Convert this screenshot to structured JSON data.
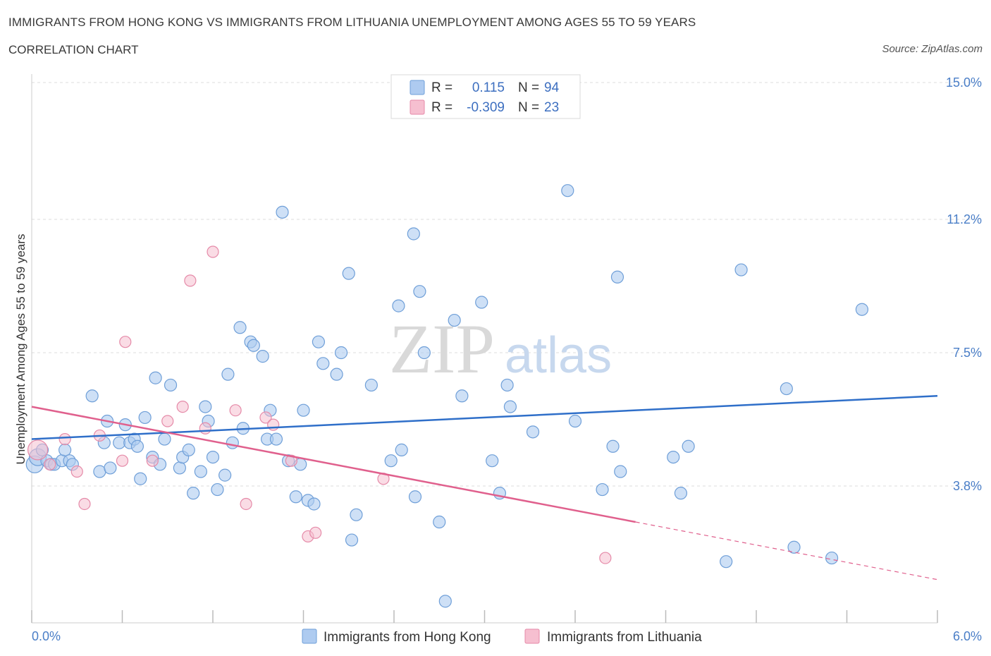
{
  "header": {
    "title": "IMMIGRANTS FROM HONG KONG VS IMMIGRANTS FROM LITHUANIA UNEMPLOYMENT AMONG AGES 55 TO 59 YEARS",
    "subtitle": "CORRELATION CHART",
    "source": "Source: ZipAtlas.com"
  },
  "watermark": {
    "zip": "ZIP",
    "atlas": "atlas"
  },
  "colors": {
    "blue_fill": "#aecbf0",
    "blue_stroke": "#6f9fd8",
    "blue_line": "#2f6fc9",
    "pink_fill": "#f6bfd0",
    "pink_stroke": "#e58aa8",
    "pink_line": "#e0608d",
    "grid": "#dddddd"
  },
  "legend": {
    "rows": [
      {
        "r_label": "R =",
        "r_value": "0.115",
        "n_label": "N =",
        "n_value": "94"
      },
      {
        "r_label": "R =",
        "r_value": "-0.309",
        "n_label": "N =",
        "n_value": "23"
      }
    ]
  },
  "chart_data": {
    "type": "scatter",
    "title": "IMMIGRANTS FROM HONG KONG VS IMMIGRANTS FROM LITHUANIA UNEMPLOYMENT AMONG AGES 55 TO 59 YEARS",
    "xlabel": "",
    "ylabel": "Unemployment Among Ages 55 to 59 years",
    "xlim": [
      0,
      6.0
    ],
    "ylim": [
      0,
      15.0
    ],
    "x_tick_labels": [
      "0.0%",
      "6.0%"
    ],
    "y_ticks": [
      3.8,
      7.5,
      11.2,
      15.0
    ],
    "y_tick_labels": [
      "3.8%",
      "7.5%",
      "11.2%",
      "15.0%"
    ],
    "grid": true,
    "legend_position": "top-center",
    "series": [
      {
        "name": "Immigrants from Hong Kong",
        "R": 0.115,
        "N": 94,
        "trend": {
          "x": [
            0.0,
            6.0
          ],
          "y": [
            5.1,
            6.3
          ]
        },
        "points": [
          [
            0.02,
            4.4
          ],
          [
            0.04,
            4.6
          ],
          [
            0.07,
            4.8
          ],
          [
            0.1,
            4.5
          ],
          [
            0.13,
            4.4
          ],
          [
            0.15,
            4.4
          ],
          [
            0.2,
            4.5
          ],
          [
            0.22,
            4.8
          ],
          [
            0.25,
            4.5
          ],
          [
            0.27,
            4.4
          ],
          [
            0.4,
            6.3
          ],
          [
            0.45,
            4.2
          ],
          [
            0.48,
            5.0
          ],
          [
            0.5,
            5.6
          ],
          [
            0.52,
            4.3
          ],
          [
            0.58,
            5.0
          ],
          [
            0.62,
            5.5
          ],
          [
            0.65,
            5.0
          ],
          [
            0.68,
            5.1
          ],
          [
            0.7,
            4.9
          ],
          [
            0.72,
            4.0
          ],
          [
            0.75,
            5.7
          ],
          [
            0.8,
            4.6
          ],
          [
            0.82,
            6.8
          ],
          [
            0.85,
            4.4
          ],
          [
            0.88,
            5.1
          ],
          [
            0.92,
            6.6
          ],
          [
            0.98,
            4.3
          ],
          [
            1.0,
            4.6
          ],
          [
            1.04,
            4.8
          ],
          [
            1.07,
            3.6
          ],
          [
            1.12,
            4.2
          ],
          [
            1.15,
            6.0
          ],
          [
            1.17,
            5.6
          ],
          [
            1.2,
            4.6
          ],
          [
            1.23,
            3.7
          ],
          [
            1.28,
            4.1
          ],
          [
            1.3,
            6.9
          ],
          [
            1.33,
            5.0
          ],
          [
            1.38,
            8.2
          ],
          [
            1.4,
            5.4
          ],
          [
            1.45,
            7.8
          ],
          [
            1.47,
            7.7
          ],
          [
            1.53,
            7.4
          ],
          [
            1.56,
            5.1
          ],
          [
            1.58,
            5.9
          ],
          [
            1.62,
            5.1
          ],
          [
            1.66,
            11.4
          ],
          [
            1.7,
            4.5
          ],
          [
            1.75,
            3.5
          ],
          [
            1.78,
            4.4
          ],
          [
            1.8,
            5.9
          ],
          [
            1.83,
            3.4
          ],
          [
            1.87,
            3.3
          ],
          [
            1.9,
            7.8
          ],
          [
            1.93,
            7.2
          ],
          [
            2.02,
            6.9
          ],
          [
            2.05,
            7.5
          ],
          [
            2.1,
            9.7
          ],
          [
            2.12,
            2.3
          ],
          [
            2.15,
            3.0
          ],
          [
            2.25,
            6.6
          ],
          [
            2.38,
            4.5
          ],
          [
            2.43,
            8.8
          ],
          [
            2.45,
            4.8
          ],
          [
            2.53,
            10.8
          ],
          [
            2.54,
            3.5
          ],
          [
            2.57,
            9.2
          ],
          [
            2.6,
            7.5
          ],
          [
            2.7,
            2.8
          ],
          [
            2.74,
            0.6
          ],
          [
            2.8,
            8.4
          ],
          [
            2.85,
            6.3
          ],
          [
            2.98,
            8.9
          ],
          [
            3.05,
            4.5
          ],
          [
            3.1,
            3.6
          ],
          [
            3.15,
            6.6
          ],
          [
            3.17,
            6.0
          ],
          [
            3.32,
            5.3
          ],
          [
            3.55,
            12.0
          ],
          [
            3.6,
            5.6
          ],
          [
            3.78,
            3.7
          ],
          [
            3.85,
            4.9
          ],
          [
            3.88,
            9.6
          ],
          [
            3.9,
            4.2
          ],
          [
            4.25,
            4.6
          ],
          [
            4.3,
            3.6
          ],
          [
            4.35,
            4.9
          ],
          [
            4.6,
            1.7
          ],
          [
            4.7,
            9.8
          ],
          [
            5.0,
            6.5
          ],
          [
            5.05,
            2.1
          ],
          [
            5.3,
            1.8
          ],
          [
            5.5,
            8.7
          ]
        ]
      },
      {
        "name": "Immigrants from Lithuania",
        "R": -0.309,
        "N": 23,
        "trend": {
          "x": [
            0.0,
            4.0,
            6.0
          ],
          "y": [
            6.0,
            2.8,
            1.2
          ],
          "solid_until_x": 4.0
        },
        "points": [
          [
            0.04,
            4.8
          ],
          [
            0.12,
            4.4
          ],
          [
            0.22,
            5.1
          ],
          [
            0.3,
            4.2
          ],
          [
            0.35,
            3.3
          ],
          [
            0.45,
            5.2
          ],
          [
            0.6,
            4.5
          ],
          [
            0.62,
            7.8
          ],
          [
            0.8,
            4.5
          ],
          [
            0.9,
            5.6
          ],
          [
            1.0,
            6.0
          ],
          [
            1.05,
            9.5
          ],
          [
            1.15,
            5.4
          ],
          [
            1.2,
            10.3
          ],
          [
            1.35,
            5.9
          ],
          [
            1.42,
            3.3
          ],
          [
            1.55,
            5.7
          ],
          [
            1.6,
            5.5
          ],
          [
            1.72,
            4.5
          ],
          [
            1.83,
            2.4
          ],
          [
            1.88,
            2.5
          ],
          [
            2.33,
            4.0
          ],
          [
            3.8,
            1.8
          ]
        ]
      }
    ]
  }
}
